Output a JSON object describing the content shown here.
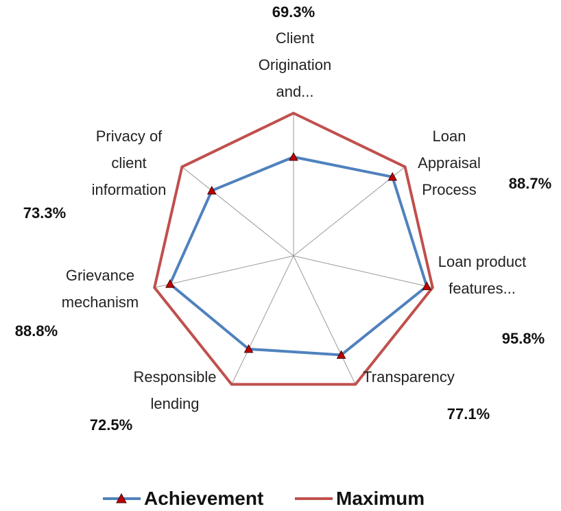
{
  "chart_data": {
    "type": "radar",
    "categories": [
      "Client Origination and...",
      "Loan Appraisal Process",
      "Loan product features...",
      "Transparency",
      "Responsible lending",
      "Grievance mechanism",
      "Privacy of client information"
    ],
    "series": [
      {
        "name": "Achievement",
        "color": "#4f81bd",
        "marker_color": "#c00000",
        "values": [
          69.3,
          88.7,
          95.8,
          77.1,
          72.5,
          88.8,
          73.3
        ],
        "value_labels": [
          "69.3%",
          "88.7%",
          "95.8%",
          "77.1%",
          "72.5%",
          "88.8%",
          "73.3%"
        ]
      },
      {
        "name": "Maximum",
        "color": "#c0504d",
        "values": [
          100,
          100,
          100,
          100,
          100,
          100,
          100
        ]
      }
    ],
    "ylim": [
      0,
      100
    ]
  }
}
